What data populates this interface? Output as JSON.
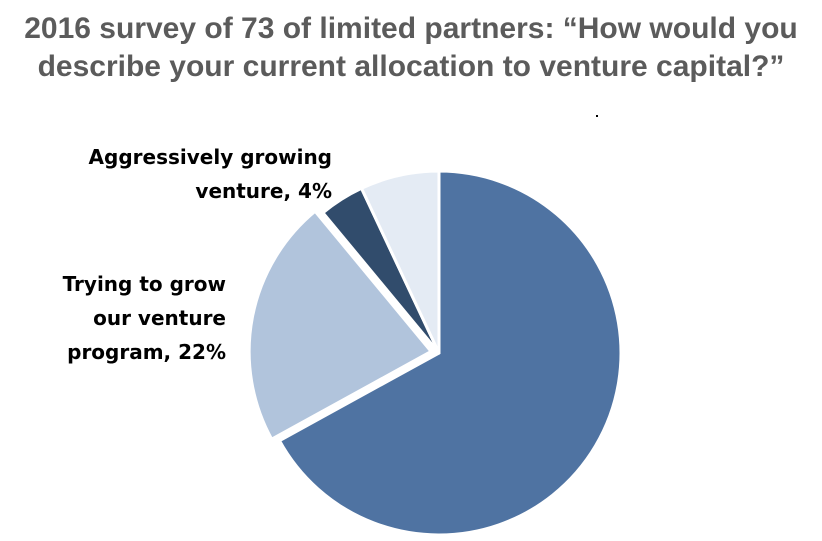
{
  "chart_data": {
    "type": "pie",
    "title_lines": [
      "2016 survey of 73 of limited partners: “How would you",
      "describe your current allocation to venture capital?”"
    ],
    "slices": [
      {
        "value": 67,
        "color": "#4f73a2",
        "label_lines": []
      },
      {
        "value": 22,
        "color": "#b1c4dc",
        "label_lines": [
          "Trying to grow",
          "our venture",
          "program, 22%"
        ]
      },
      {
        "value": 4,
        "color": "#314c6c",
        "label_lines": [
          "Aggressively growing",
          "venture, 4%"
        ]
      },
      {
        "value": 7,
        "color": "#e4ebf4",
        "label_lines": []
      }
    ],
    "start_angle_deg": 0,
    "direction": "clockwise",
    "exploded_slice_index": 1,
    "legend": "none"
  }
}
